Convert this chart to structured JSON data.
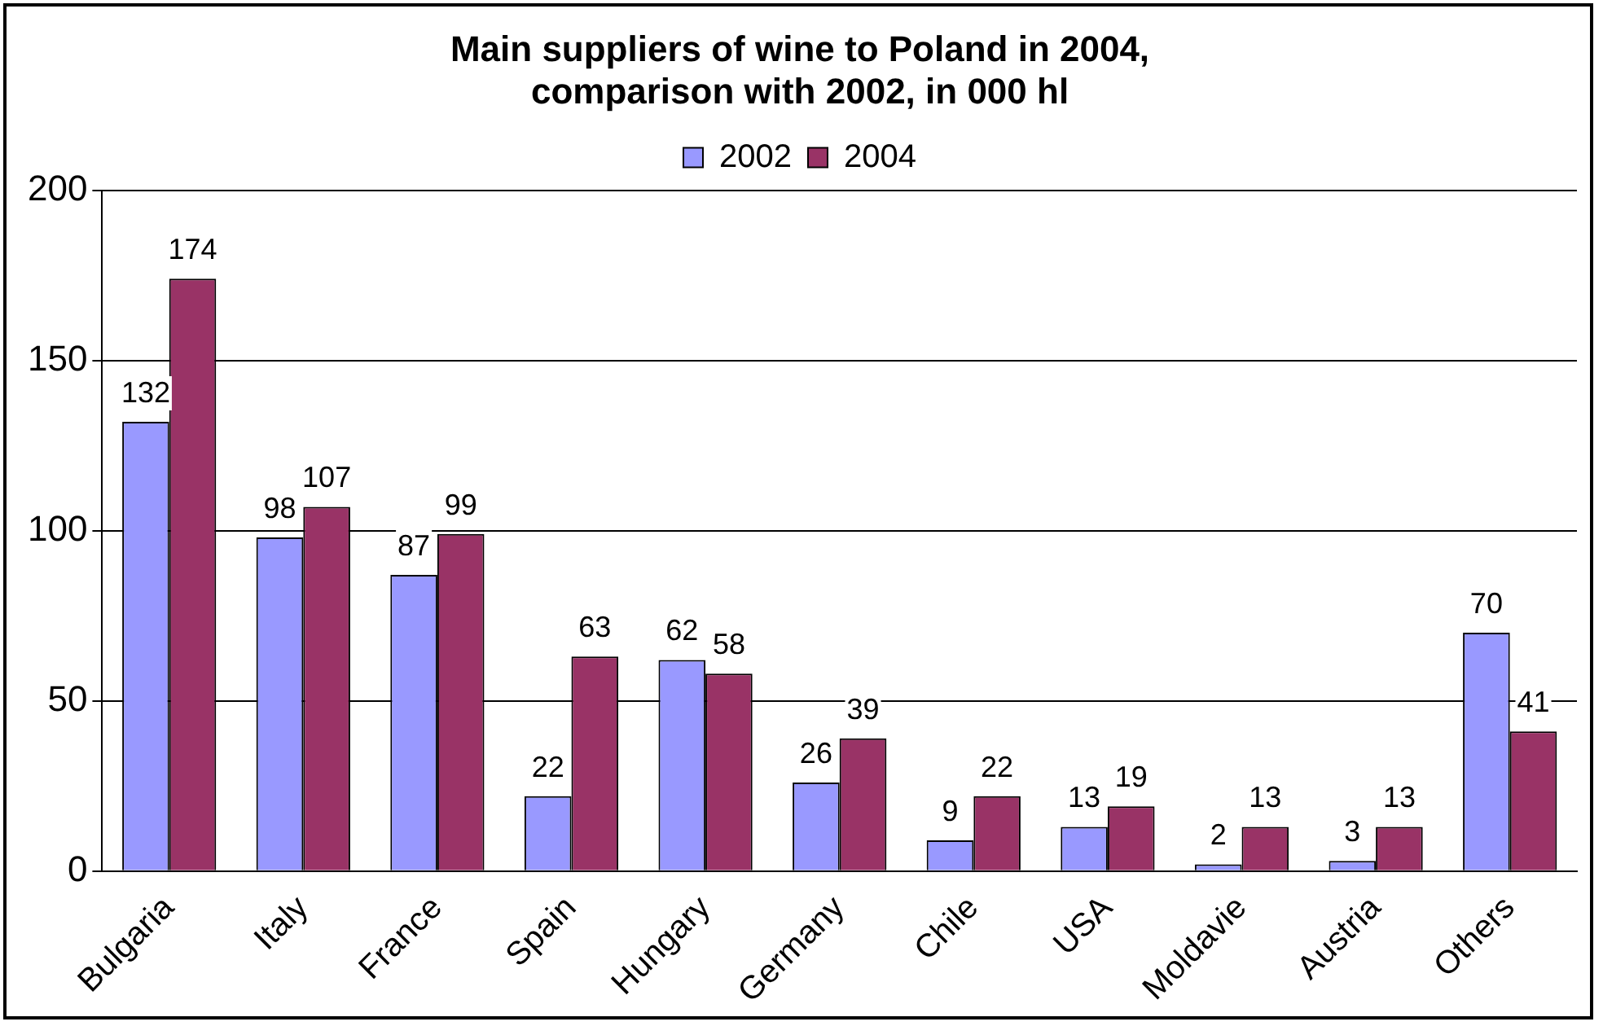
{
  "chart_data": {
    "type": "bar",
    "title": "Main suppliers of wine to Poland in 2004,\ncomparison with 2002, in 000 hl",
    "categories": [
      "Bulgaria",
      "Italy",
      "France",
      "Spain",
      "Hungary",
      "Germany",
      "Chile",
      "USA",
      "Moldavie",
      "Austria",
      "Others"
    ],
    "series": [
      {
        "name": "2002",
        "color": "#9999ff",
        "values": [
          132,
          98,
          87,
          22,
          62,
          26,
          9,
          13,
          2,
          3,
          70
        ]
      },
      {
        "name": "2004",
        "color": "#993366",
        "values": [
          174,
          107,
          99,
          63,
          58,
          39,
          22,
          19,
          13,
          13,
          41
        ]
      }
    ],
    "ylim": [
      0,
      200
    ],
    "yticks": [
      0,
      50,
      100,
      150,
      200
    ],
    "grid": "y",
    "legend": "top",
    "data_labels": true
  }
}
